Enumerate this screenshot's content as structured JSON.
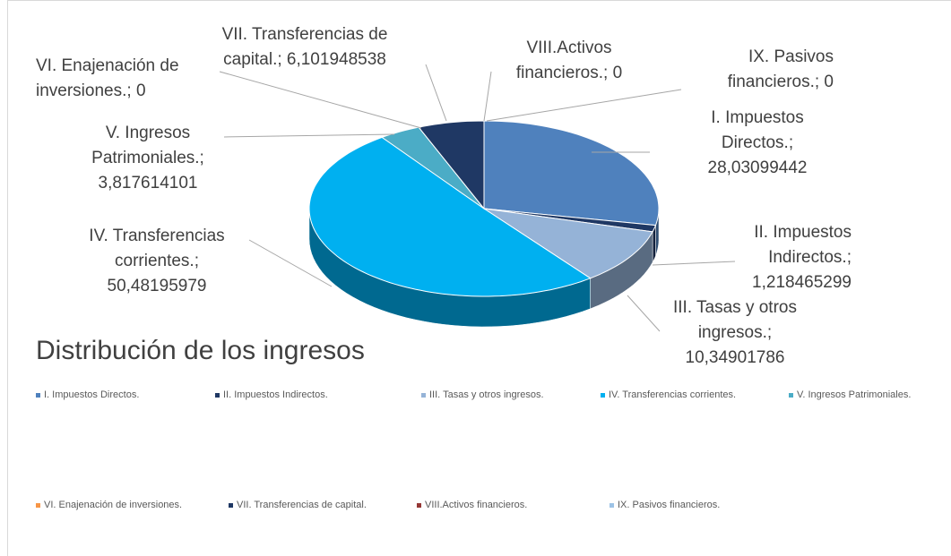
{
  "chart_data": {
    "type": "pie",
    "title": "Distribución de los ingresos",
    "categories": [
      "I. Impuestos Directos.",
      "II. Impuestos Indirectos.",
      "III. Tasas y otros ingresos.",
      "IV. Transferencias corrientes.",
      "V. Ingresos Patrimoniales.",
      "VI. Enajenación de inversiones.",
      "VII. Transferencias de capital.",
      "VIII.Activos financieros.",
      "IX. Pasivos financieros."
    ],
    "values": [
      28.03099442,
      1.218465299,
      10.34901786,
      50.48195979,
      3.817614101,
      0,
      6.101948538,
      0,
      0
    ],
    "value_labels": [
      "I. Impuestos Directos.; 28,03099442",
      "II. Impuestos Indirectos.; 1,218465299",
      "III. Tasas y otros ingresos.; 10,34901786",
      "IV. Transferencias corrientes.; 50,48195979",
      "V. Ingresos Patrimoniales.; 3,817614101",
      "VI. Enajenación de inversiones.; 0",
      "VII. Transferencias de capital.; 6,101948538",
      "VIII.Activos financieros.; 0",
      "IX. Pasivos financieros.; 0"
    ],
    "colors": [
      "#4f81bd",
      "#1f3864",
      "#95b3d7",
      "#00b0f0",
      "#4bacc6",
      "#f79646",
      "#1f3864",
      "#953735",
      "#9dc3e6"
    ],
    "legend": "bottom"
  }
}
